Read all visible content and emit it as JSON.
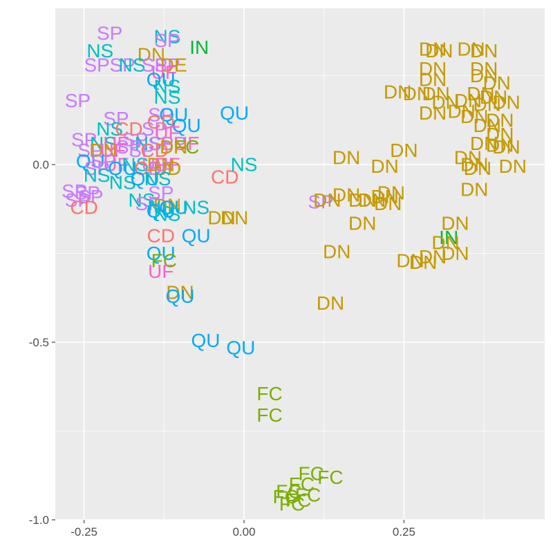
{
  "chart_data": {
    "type": "scatter",
    "title": "",
    "xlabel": "",
    "ylabel": "",
    "xlim": [
      -0.295,
      0.47
    ],
    "ylim": [
      -1.0,
      0.44
    ],
    "xticks": [
      {
        "v": -0.25,
        "label": "-0.25"
      },
      {
        "v": 0.0,
        "label": "0.00"
      },
      {
        "v": 0.25,
        "label": "0.25"
      }
    ],
    "yticks": [
      {
        "v": -1.0,
        "label": "-1.0"
      },
      {
        "v": -0.5,
        "label": "-0.5"
      },
      {
        "v": 0.0,
        "label": "0.0"
      }
    ],
    "grid": true,
    "legend": "none",
    "colors": {
      "CD": "#F8766D",
      "DN": "#C49A00",
      "IN": "#00BA38",
      "FC": "#7CAE00",
      "NS": "#00BFC4",
      "QU": "#00A9FF",
      "SP": "#C77CFF",
      "UF": "#FF61CC"
    },
    "points": [
      {
        "x": -0.21,
        "y": 0.37,
        "label": "SP"
      },
      {
        "x": -0.12,
        "y": 0.36,
        "label": "NS"
      },
      {
        "x": -0.12,
        "y": 0.35,
        "label": "SP"
      },
      {
        "x": -0.07,
        "y": 0.33,
        "label": "IN"
      },
      {
        "x": -0.225,
        "y": 0.32,
        "label": "NS"
      },
      {
        "x": -0.145,
        "y": 0.31,
        "label": "DN"
      },
      {
        "x": -0.23,
        "y": 0.28,
        "label": "SP"
      },
      {
        "x": -0.19,
        "y": 0.28,
        "label": "SP"
      },
      {
        "x": -0.175,
        "y": 0.28,
        "label": "NS"
      },
      {
        "x": -0.14,
        "y": 0.28,
        "label": "SP"
      },
      {
        "x": -0.12,
        "y": 0.28,
        "label": "SP"
      },
      {
        "x": -0.11,
        "y": 0.28,
        "label": "DE"
      },
      {
        "x": -0.125,
        "y": 0.26,
        "label": "UF"
      },
      {
        "x": -0.13,
        "y": 0.24,
        "label": "QU"
      },
      {
        "x": -0.12,
        "y": 0.22,
        "label": "NS"
      },
      {
        "x": -0.26,
        "y": 0.18,
        "label": "SP"
      },
      {
        "x": -0.12,
        "y": 0.19,
        "label": "NS"
      },
      {
        "x": -0.2,
        "y": 0.13,
        "label": "SP"
      },
      {
        "x": -0.13,
        "y": 0.14,
        "label": "SP"
      },
      {
        "x": -0.11,
        "y": 0.14,
        "label": "QU"
      },
      {
        "x": -0.015,
        "y": 0.145,
        "label": "QU"
      },
      {
        "x": -0.13,
        "y": 0.12,
        "label": "CD"
      },
      {
        "x": -0.09,
        "y": 0.11,
        "label": "QU"
      },
      {
        "x": -0.21,
        "y": 0.1,
        "label": "NS"
      },
      {
        "x": -0.18,
        "y": 0.1,
        "label": "CD"
      },
      {
        "x": -0.14,
        "y": 0.1,
        "label": "SP"
      },
      {
        "x": -0.12,
        "y": 0.09,
        "label": "UF"
      },
      {
        "x": -0.25,
        "y": 0.07,
        "label": "SP"
      },
      {
        "x": -0.22,
        "y": 0.06,
        "label": "NS"
      },
      {
        "x": -0.2,
        "y": 0.06,
        "label": "UF"
      },
      {
        "x": -0.17,
        "y": 0.07,
        "label": "SP"
      },
      {
        "x": -0.15,
        "y": 0.06,
        "label": "NS"
      },
      {
        "x": -0.13,
        "y": 0.06,
        "label": "SP"
      },
      {
        "x": -0.11,
        "y": 0.06,
        "label": "SP"
      },
      {
        "x": -0.09,
        "y": 0.06,
        "label": "UF"
      },
      {
        "x": -0.09,
        "y": 0.05,
        "label": "FC"
      },
      {
        "x": -0.11,
        "y": 0.05,
        "label": "DN"
      },
      {
        "x": -0.24,
        "y": 0.04,
        "label": "SP"
      },
      {
        "x": -0.22,
        "y": 0.04,
        "label": "DN"
      },
      {
        "x": -0.205,
        "y": 0.04,
        "label": "UF"
      },
      {
        "x": -0.18,
        "y": 0.05,
        "label": "SP"
      },
      {
        "x": -0.16,
        "y": 0.04,
        "label": "SP"
      },
      {
        "x": -0.14,
        "y": 0.04,
        "label": "CD"
      },
      {
        "x": -0.24,
        "y": 0.01,
        "label": "QU"
      },
      {
        "x": -0.22,
        "y": 0.01,
        "label": "SP"
      },
      {
        "x": -0.2,
        "y": 0.0,
        "label": "UF"
      },
      {
        "x": -0.17,
        "y": 0.0,
        "label": "NS"
      },
      {
        "x": -0.14,
        "y": 0.0,
        "label": "UF"
      },
      {
        "x": -0.13,
        "y": 0.0,
        "label": "DN"
      },
      {
        "x": -0.12,
        "y": 0.0,
        "label": "UF"
      },
      {
        "x": -0.23,
        "y": -0.01,
        "label": "SP"
      },
      {
        "x": -0.19,
        "y": -0.01,
        "label": "QU"
      },
      {
        "x": -0.15,
        "y": -0.01,
        "label": "CD"
      },
      {
        "x": -0.13,
        "y": -0.01,
        "label": "SP"
      },
      {
        "x": -0.12,
        "y": -0.01,
        "label": "UD"
      },
      {
        "x": -0.23,
        "y": -0.03,
        "label": "NS"
      },
      {
        "x": -0.19,
        "y": -0.05,
        "label": "NS"
      },
      {
        "x": -0.155,
        "y": -0.04,
        "label": "QU"
      },
      {
        "x": -0.135,
        "y": -0.04,
        "label": "NS"
      },
      {
        "x": -0.03,
        "y": -0.035,
        "label": "CD"
      },
      {
        "x": 0.0,
        "y": 0.0,
        "label": "NS"
      },
      {
        "x": -0.265,
        "y": -0.075,
        "label": "SP"
      },
      {
        "x": -0.245,
        "y": -0.08,
        "label": "SP"
      },
      {
        "x": -0.24,
        "y": -0.09,
        "label": "SP"
      },
      {
        "x": -0.26,
        "y": -0.1,
        "label": "SP"
      },
      {
        "x": -0.25,
        "y": -0.12,
        "label": "CD"
      },
      {
        "x": -0.13,
        "y": -0.08,
        "label": "SP"
      },
      {
        "x": -0.16,
        "y": -0.1,
        "label": "NS"
      },
      {
        "x": -0.15,
        "y": -0.11,
        "label": "SP"
      },
      {
        "x": -0.13,
        "y": -0.12,
        "label": "NS"
      },
      {
        "x": -0.12,
        "y": -0.115,
        "label": "DN"
      },
      {
        "x": -0.11,
        "y": -0.12,
        "label": "QU"
      },
      {
        "x": -0.075,
        "y": -0.12,
        "label": "NS"
      },
      {
        "x": -0.13,
        "y": -0.13,
        "label": "QU"
      },
      {
        "x": -0.12,
        "y": -0.14,
        "label": "NS"
      },
      {
        "x": -0.035,
        "y": -0.15,
        "label": "DN"
      },
      {
        "x": -0.015,
        "y": -0.15,
        "label": "DN"
      },
      {
        "x": -0.13,
        "y": -0.2,
        "label": "CD"
      },
      {
        "x": -0.075,
        "y": -0.2,
        "label": "QU"
      },
      {
        "x": -0.13,
        "y": -0.25,
        "label": "QU"
      },
      {
        "x": -0.125,
        "y": -0.27,
        "label": "FC"
      },
      {
        "x": -0.13,
        "y": -0.3,
        "label": "UF"
      },
      {
        "x": -0.1,
        "y": -0.36,
        "label": "DN"
      },
      {
        "x": -0.1,
        "y": -0.37,
        "label": "QU"
      },
      {
        "x": -0.06,
        "y": -0.495,
        "label": "QU"
      },
      {
        "x": -0.005,
        "y": -0.515,
        "label": "QU"
      },
      {
        "x": 0.04,
        "y": -0.645,
        "label": "FC"
      },
      {
        "x": 0.04,
        "y": -0.705,
        "label": "FC"
      },
      {
        "x": 0.105,
        "y": -0.87,
        "label": "FC"
      },
      {
        "x": 0.135,
        "y": -0.88,
        "label": "FC"
      },
      {
        "x": 0.09,
        "y": -0.9,
        "label": "FC"
      },
      {
        "x": 0.07,
        "y": -0.92,
        "label": "FC"
      },
      {
        "x": 0.065,
        "y": -0.935,
        "label": "FC"
      },
      {
        "x": 0.1,
        "y": -0.93,
        "label": "FC"
      },
      {
        "x": 0.085,
        "y": -0.945,
        "label": "FC"
      },
      {
        "x": 0.075,
        "y": -0.955,
        "label": "FC"
      },
      {
        "x": 0.295,
        "y": 0.325,
        "label": "DN"
      },
      {
        "x": 0.305,
        "y": 0.32,
        "label": "DN"
      },
      {
        "x": 0.355,
        "y": 0.325,
        "label": "DN"
      },
      {
        "x": 0.375,
        "y": 0.32,
        "label": "DN"
      },
      {
        "x": 0.295,
        "y": 0.27,
        "label": "DN"
      },
      {
        "x": 0.375,
        "y": 0.27,
        "label": "DN"
      },
      {
        "x": 0.295,
        "y": 0.24,
        "label": "DN"
      },
      {
        "x": 0.375,
        "y": 0.25,
        "label": "DN"
      },
      {
        "x": 0.395,
        "y": 0.23,
        "label": "DN"
      },
      {
        "x": 0.24,
        "y": 0.205,
        "label": "DN"
      },
      {
        "x": 0.27,
        "y": 0.2,
        "label": "DN"
      },
      {
        "x": 0.3,
        "y": 0.2,
        "label": "DN"
      },
      {
        "x": 0.37,
        "y": 0.2,
        "label": "DN"
      },
      {
        "x": 0.39,
        "y": 0.19,
        "label": "DN"
      },
      {
        "x": 0.35,
        "y": 0.18,
        "label": "DN"
      },
      {
        "x": 0.315,
        "y": 0.175,
        "label": "DN"
      },
      {
        "x": 0.38,
        "y": 0.17,
        "label": "DN"
      },
      {
        "x": 0.41,
        "y": 0.175,
        "label": "DN"
      },
      {
        "x": 0.295,
        "y": 0.145,
        "label": "DN"
      },
      {
        "x": 0.34,
        "y": 0.15,
        "label": "DN"
      },
      {
        "x": 0.36,
        "y": 0.135,
        "label": "DN"
      },
      {
        "x": 0.4,
        "y": 0.125,
        "label": "DN"
      },
      {
        "x": 0.38,
        "y": 0.11,
        "label": "DN"
      },
      {
        "x": 0.4,
        "y": 0.085,
        "label": "DN"
      },
      {
        "x": 0.375,
        "y": 0.06,
        "label": "DN"
      },
      {
        "x": 0.4,
        "y": 0.055,
        "label": "DN"
      },
      {
        "x": 0.41,
        "y": 0.05,
        "label": "DN"
      },
      {
        "x": 0.25,
        "y": 0.04,
        "label": "DN"
      },
      {
        "x": 0.16,
        "y": 0.02,
        "label": "DN"
      },
      {
        "x": 0.35,
        "y": 0.02,
        "label": "DN"
      },
      {
        "x": 0.36,
        "y": 0.0,
        "label": "DN"
      },
      {
        "x": 0.22,
        "y": -0.005,
        "label": "DN"
      },
      {
        "x": 0.42,
        "y": -0.005,
        "label": "DN"
      },
      {
        "x": 0.365,
        "y": -0.01,
        "label": "DN"
      },
      {
        "x": 0.36,
        "y": -0.07,
        "label": "DN"
      },
      {
        "x": 0.16,
        "y": -0.085,
        "label": "DN"
      },
      {
        "x": 0.22,
        "y": -0.09,
        "label": "DN"
      },
      {
        "x": 0.23,
        "y": -0.08,
        "label": "DN"
      },
      {
        "x": 0.185,
        "y": -0.1,
        "label": "DN"
      },
      {
        "x": 0.2,
        "y": -0.1,
        "label": "DN"
      },
      {
        "x": 0.225,
        "y": -0.11,
        "label": "DN"
      },
      {
        "x": 0.12,
        "y": -0.105,
        "label": "SP"
      },
      {
        "x": 0.13,
        "y": -0.1,
        "label": "DN"
      },
      {
        "x": 0.185,
        "y": -0.165,
        "label": "DN"
      },
      {
        "x": 0.33,
        "y": -0.165,
        "label": "DN"
      },
      {
        "x": 0.32,
        "y": -0.205,
        "label": "IN"
      },
      {
        "x": 0.315,
        "y": -0.22,
        "label": "DN"
      },
      {
        "x": 0.33,
        "y": -0.25,
        "label": "DN"
      },
      {
        "x": 0.145,
        "y": -0.245,
        "label": "DN"
      },
      {
        "x": 0.295,
        "y": -0.26,
        "label": "DN"
      },
      {
        "x": 0.26,
        "y": -0.27,
        "label": "DN"
      },
      {
        "x": 0.28,
        "y": -0.275,
        "label": "DN"
      },
      {
        "x": 0.135,
        "y": -0.39,
        "label": "DN"
      }
    ]
  }
}
